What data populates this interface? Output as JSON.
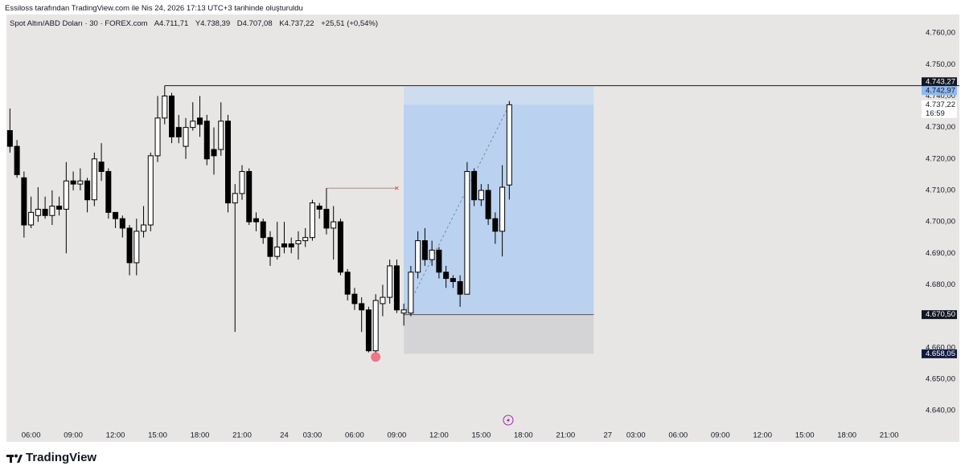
{
  "header": {
    "caption": "Essiloss tarafından TradingView.com ile Nis 24, 2026 17:13 UTC+3 tarihinde oluşturuldu"
  },
  "chart_data": {
    "type": "candlestick",
    "symbol": "Spot Altın/ABD Doları · 30 · FOREX.com",
    "ohlc_legend": [
      "A4.711,71",
      "Y4.738,39",
      "D4.707,08",
      "K4.737,22"
    ],
    "change": "+25,51 (+0,54%)",
    "categories": [
      null,
      null,
      null,
      "06:00",
      null,
      null,
      null,
      null,
      null,
      "09:00",
      null,
      null,
      null,
      null,
      null,
      "12:00",
      null,
      null,
      null,
      null,
      null,
      "15:00",
      null,
      null,
      null,
      null,
      null,
      "18:00",
      null,
      null,
      null,
      null,
      null,
      "21:00",
      null,
      null,
      null,
      null,
      null,
      "24",
      null,
      null,
      null,
      "03:00",
      null,
      null,
      null,
      null,
      null,
      "06:00",
      null,
      null,
      null,
      null,
      null,
      "09:00",
      null,
      null,
      null,
      null,
      null,
      "12:00",
      null,
      null,
      null,
      null,
      null,
      "15:00",
      null,
      null,
      null,
      null,
      null,
      "18:00",
      null,
      null,
      null,
      null,
      null,
      "21:00",
      null,
      null,
      null,
      null,
      null,
      "27",
      null,
      null,
      null,
      "03:00",
      null,
      null,
      null,
      null,
      null,
      "06:00",
      null,
      null,
      null,
      null,
      null,
      "09:00",
      null,
      null,
      null,
      null,
      null,
      "12:00",
      null,
      null,
      null,
      null,
      null,
      "15:00",
      null,
      null,
      null,
      null,
      null,
      "18:00",
      null,
      null,
      null,
      null,
      null,
      "21:00",
      null,
      null,
      null,
      null
    ],
    "open": [
      4729,
      4724,
      4714,
      4699,
      4702,
      4704,
      4702,
      4705,
      4704,
      4713,
      4712,
      4713,
      4707,
      4719,
      4716,
      4703,
      4701,
      4698,
      4687,
      4697,
      4699,
      4721,
      4733,
      4740,
      4730,
      4724,
      4730,
      4733,
      4732,
      4723,
      4723,
      4732,
      4706,
      4709,
      4716,
      4701,
      4700,
      4695,
      4689,
      4693,
      4693,
      4693,
      4694,
      4695,
      4705,
      4704,
      4698,
      4700,
      4684,
      4677,
      4674,
      4672,
      4659,
      4674,
      4676,
      4686,
      4671,
      4671,
      4684,
      4694,
      4688,
      4691,
      4684,
      4682,
      4681,
      4677,
      4716,
      4707,
      4710,
      4701,
      4697,
      4711.71,
      null,
      null,
      null,
      null,
      null,
      null,
      null,
      null,
      null,
      null,
      null,
      null,
      null,
      null,
      null,
      null,
      null,
      null,
      null,
      null,
      null,
      null,
      null,
      null,
      null,
      null,
      null,
      null,
      null,
      null,
      null,
      null,
      null,
      null,
      null,
      null,
      null,
      null,
      null,
      null,
      null,
      null,
      null,
      null,
      null,
      null,
      null,
      null,
      null,
      null,
      null,
      null,
      null,
      null,
      null,
      null,
      null,
      null
    ],
    "high": [
      4736,
      4726,
      4716,
      4708,
      4711,
      4708,
      4710,
      4708,
      4719,
      4716,
      4717,
      4714,
      4722,
      4725,
      4717,
      4703,
      4702,
      4699,
      4701,
      4705,
      4722,
      4740,
      4743.27,
      4741,
      4734,
      4733,
      4738,
      4740,
      4734,
      4730,
      4738,
      4734,
      4712,
      4718,
      4717,
      4703,
      4701,
      4697,
      4700,
      4700,
      4695,
      4697,
      4698,
      4707,
      4706,
      4710.7,
      4705,
      4701,
      4685,
      4679,
      4676,
      4673,
      4677,
      4680,
      4688,
      4688,
      4674,
      4686,
      4697,
      4698,
      4694,
      4692,
      4686,
      4683,
      4683,
      4719,
      4717,
      4712,
      4712,
      4703,
      4718,
      4738.39,
      null,
      null,
      null,
      null,
      null,
      null,
      null,
      null,
      null,
      null,
      null,
      null,
      null,
      null,
      null,
      null,
      null,
      null,
      null,
      null,
      null,
      null,
      null,
      null,
      null,
      null,
      null,
      null,
      null,
      null,
      null,
      null,
      null,
      null,
      null,
      null,
      null,
      null,
      null,
      null,
      null,
      null,
      null,
      null,
      null,
      null,
      null,
      null,
      null,
      null,
      null,
      null,
      null,
      null,
      null,
      null,
      null,
      null
    ],
    "low": [
      4722,
      4714,
      4695,
      4698,
      4700,
      4701,
      4699,
      4702,
      4690,
      4710,
      4710,
      4703,
      4705,
      4713,
      4701,
      4698,
      4695,
      4683,
      4683,
      4695,
      4697,
      4719,
      4731,
      4725,
      4725,
      4720,
      4729,
      4727,
      4718,
      4715,
      4721,
      4703,
      4665,
      4707,
      4699,
      4697,
      4693,
      4686,
      4688,
      4690,
      4690,
      4688,
      4692,
      4694,
      4701,
      4696,
      4688,
      4683,
      4675,
      4672,
      4665,
      4658.5,
      4658.05,
      4670,
      4674,
      4671,
      4667,
      4670,
      4682,
      4686,
      4686,
      4682,
      4679,
      4679,
      4673,
      4677,
      4705,
      4705,
      4699,
      4693,
      4689,
      4707.08,
      null,
      null,
      null,
      null,
      null,
      null,
      null,
      null,
      null,
      null,
      null,
      null,
      null,
      null,
      null,
      null,
      null,
      null,
      null,
      null,
      null,
      null,
      null,
      null,
      null,
      null,
      null,
      null,
      null,
      null,
      null,
      null,
      null,
      null,
      null,
      null,
      null,
      null,
      null,
      null,
      null,
      null,
      null,
      null,
      null,
      null,
      null,
      null,
      null,
      null,
      null,
      null,
      null,
      null,
      null,
      null,
      null,
      null
    ],
    "close": [
      4724,
      4715,
      4699,
      4703,
      4704,
      4702,
      4705,
      4704,
      4713,
      4712,
      4713,
      4707,
      4720,
      4716,
      4703,
      4701,
      4698,
      4687,
      4697,
      4699,
      4721,
      4733,
      4740,
      4727,
      4727,
      4730,
      4732,
      4731,
      4720,
      4721,
      4732,
      4706,
      4709,
      4716,
      4700,
      4700,
      4695,
      4689,
      4692,
      4692,
      4692,
      4694,
      4695,
      4706,
      4704,
      4698,
      4700,
      4684,
      4677,
      4674,
      4672,
      4659,
      4675,
      4676,
      4686,
      4672,
      4672,
      4684,
      4694,
      4688,
      4691,
      4684,
      4682,
      4681,
      4677,
      4716,
      4707,
      4710,
      4701,
      4697,
      4711,
      4737.22,
      null,
      null,
      null,
      null,
      null,
      null,
      null,
      null,
      null,
      null,
      null,
      null,
      null,
      null,
      null,
      null,
      null,
      null,
      null,
      null,
      null,
      null,
      null,
      null,
      null,
      null,
      null,
      null,
      null,
      null,
      null,
      null,
      null,
      null,
      null,
      null,
      null,
      null,
      null,
      null,
      null,
      null,
      null,
      null,
      null,
      null,
      null,
      null,
      null,
      null,
      null,
      null,
      null,
      null,
      null,
      null,
      null,
      null
    ],
    "up_color": "#ffffff",
    "down_color": "#000000",
    "ylim": [
      4634.4,
      4765.4
    ],
    "yticks": [
      {
        "value": 4640,
        "label": "4.640,00"
      },
      {
        "value": 4650,
        "label": "4.650,00"
      },
      {
        "value": 4660,
        "label": "4.660,00"
      },
      {
        "value": 4680,
        "label": "4.680,00"
      },
      {
        "value": 4690,
        "label": "4.690,00"
      },
      {
        "value": 4700,
        "label": "4.700,00"
      },
      {
        "value": 4710,
        "label": "4.710,00"
      },
      {
        "value": 4720,
        "label": "4.720,00"
      },
      {
        "value": 4730,
        "label": "4.730,00"
      },
      {
        "value": 4740,
        "label": "4.740,00"
      },
      {
        "value": 4750,
        "label": "4.750,00"
      },
      {
        "value": 4760,
        "label": "4.760,00"
      }
    ],
    "grid": false,
    "hline": {
      "value": 4743.27,
      "from": 22
    },
    "marker_line": {
      "value": 4710.7,
      "x_range": [
        45,
        55
      ]
    },
    "position_tool": {
      "entry": 4670.5,
      "target": 4742.97,
      "stop": 4658.05,
      "x_range": [
        56,
        83
      ]
    },
    "price_tags": [
      {
        "value": 4743.27,
        "label": "4.743,27",
        "color": "#131722"
      },
      {
        "value": 4742.97,
        "label": "4.742,97",
        "color": "#8fbaf0"
      },
      {
        "value": 4737.22,
        "label": "4.737,22",
        "color": "#ffffff"
      },
      {
        "value": 4670.5,
        "label": "4.670,50",
        "color": "#131722"
      },
      {
        "value": 4658.05,
        "label": "4.658,05",
        "color": "#0f1c3f"
      }
    ],
    "countdown": "16:59"
  },
  "brand": "TradingView"
}
